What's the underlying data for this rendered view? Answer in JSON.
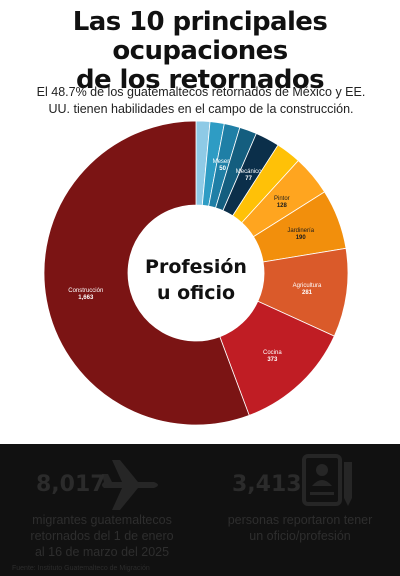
{
  "header": {
    "title_line1": "Las 10 principales ocupaciones",
    "title_line2": "de los retornados",
    "subtitle_line1": "El 48.7% de los guatemaltecos retornados de México y EE.",
    "subtitle_line2": "UU. tienen habilidades en el campo de la construcción."
  },
  "chart_data": {
    "type": "pie",
    "variant": "donut",
    "center_label_line1": "Profesión",
    "center_label_line2": "u oficio",
    "slices": [
      {
        "label": "",
        "value": 44,
        "color": "#8ecae6",
        "show_label": false
      },
      {
        "label": "",
        "value": 45,
        "color": "#2e9cc4",
        "show_label": false
      },
      {
        "label": "Mesero",
        "value": 50,
        "color": "#1f7fa6",
        "show_label": true
      },
      {
        "label": "",
        "value": 55,
        "color": "#145e7f",
        "show_label": false
      },
      {
        "label": "Mecánico",
        "value": 77,
        "color": "#0b2f4a",
        "show_label": true
      },
      {
        "label": "",
        "value": 80,
        "color": "#ffc107",
        "show_label": false
      },
      {
        "label": "Pintor",
        "value": 128,
        "color": "#ffa51f",
        "show_label": true
      },
      {
        "label": "Jardinería",
        "value": 190,
        "color": "#f28f0c",
        "show_label": true
      },
      {
        "label": "Agricultura",
        "value": 281,
        "color": "#da5a2a",
        "show_label": true
      },
      {
        "label": "Cocina",
        "value": 373,
        "color": "#c01d24",
        "show_label": true
      },
      {
        "label": "Construcción",
        "value": 1663,
        "value_label": "1,663",
        "color": "#7b1414",
        "show_label": true
      }
    ]
  },
  "stats": [
    {
      "number": "8,017",
      "text_line1": "migrantes guatemaltecos",
      "text_line2": "retornados del 1 de enero",
      "text_line3": "al 16 de marzo del 2025",
      "icon": "airplane-icon"
    },
    {
      "number": "3,413",
      "text_line1": "personas reportaron tener",
      "text_line2": "un oficio/profesión",
      "icon": "resume-icon"
    }
  ],
  "source": "Fuente: Instituto Guatemalteco de Migración"
}
